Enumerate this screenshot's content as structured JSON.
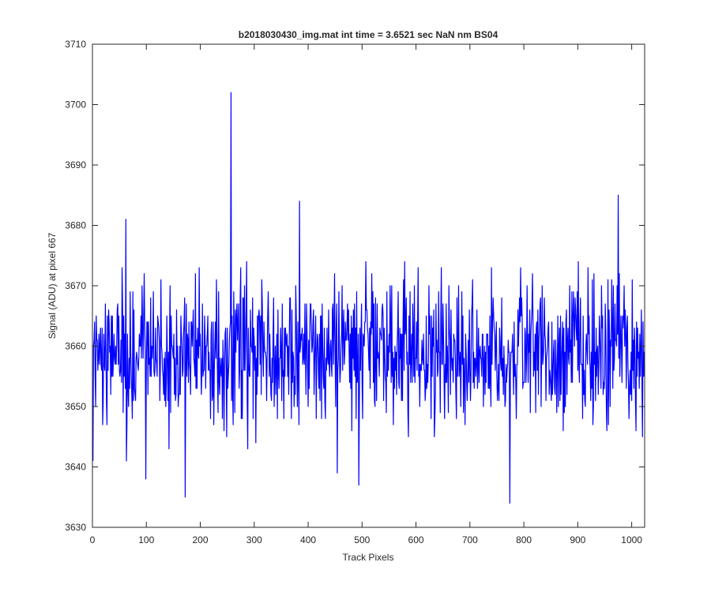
{
  "chart_data": {
    "type": "line",
    "title": "b2018030430_img.mat int time = 3.6521 sec  NaN nm BS04",
    "xlabel": "Track Pixels",
    "ylabel": "Signal (ADU) at pixel 667",
    "xlim": [
      0,
      1024
    ],
    "ylim": [
      3630,
      3710
    ],
    "xticks": [
      0,
      100,
      200,
      300,
      400,
      500,
      600,
      700,
      800,
      900,
      1000
    ],
    "yticks": [
      3630,
      3640,
      3650,
      3660,
      3670,
      3680,
      3690,
      3700,
      3710
    ],
    "grid": false,
    "legend": "none",
    "series": [
      {
        "color": "#0000ff",
        "generated": "approximate noise trace",
        "mean": 3659,
        "stdev": 6,
        "n_points": 1024,
        "notable_points": [
          {
            "x": 1,
            "y": 3641
          },
          {
            "x": 62,
            "y": 3681
          },
          {
            "x": 63,
            "y": 3641
          },
          {
            "x": 99,
            "y": 3638
          },
          {
            "x": 172,
            "y": 3635
          },
          {
            "x": 257,
            "y": 3702
          },
          {
            "x": 384,
            "y": 3684
          },
          {
            "x": 494,
            "y": 3637
          },
          {
            "x": 774,
            "y": 3634
          },
          {
            "x": 975,
            "y": 3685
          }
        ]
      }
    ]
  }
}
